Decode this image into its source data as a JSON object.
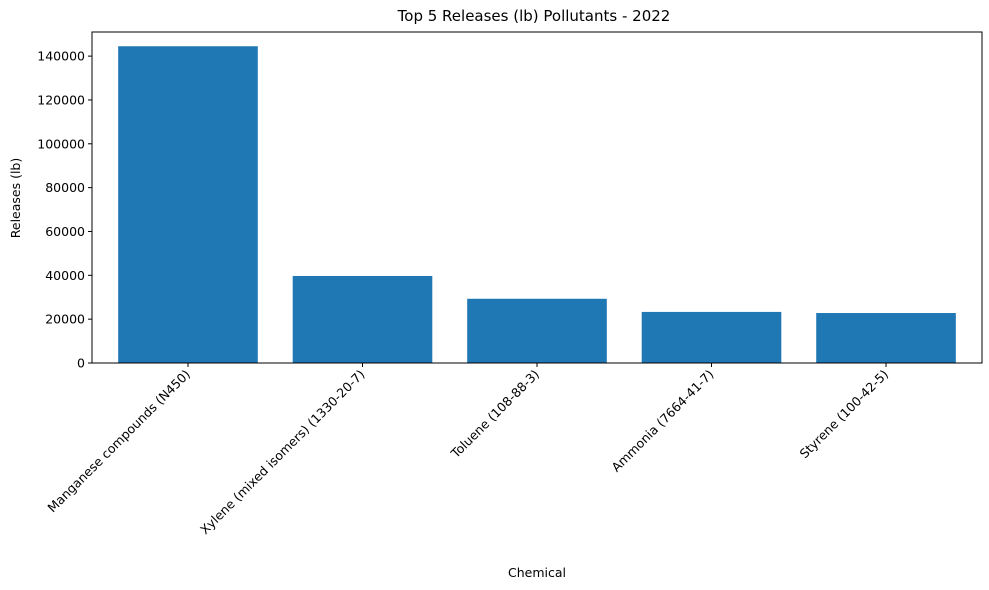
{
  "chart_data": {
    "type": "bar",
    "title": "Top 5 Releases (lb) Pollutants - 2022",
    "xlabel": "Chemical",
    "ylabel": "Releases (lb)",
    "categories": [
      "Manganese compounds (N450)",
      "Xylene (mixed isomers) (1330-20-7)",
      "Toluene (108-88-3)",
      "Ammonia (7664-41-7)",
      "Styrene (100-42-5)"
    ],
    "values": [
      144500,
      39700,
      29300,
      23300,
      22800
    ],
    "ylim": [
      0,
      151000
    ],
    "yticks": [
      0,
      20000,
      40000,
      60000,
      80000,
      100000,
      120000,
      140000
    ],
    "ytick_labels": [
      "0",
      "20000",
      "40000",
      "60000",
      "80000",
      "100000",
      "120000",
      "140000"
    ],
    "bar_color": "#1f77b4",
    "grid": false,
    "legend": "none"
  }
}
